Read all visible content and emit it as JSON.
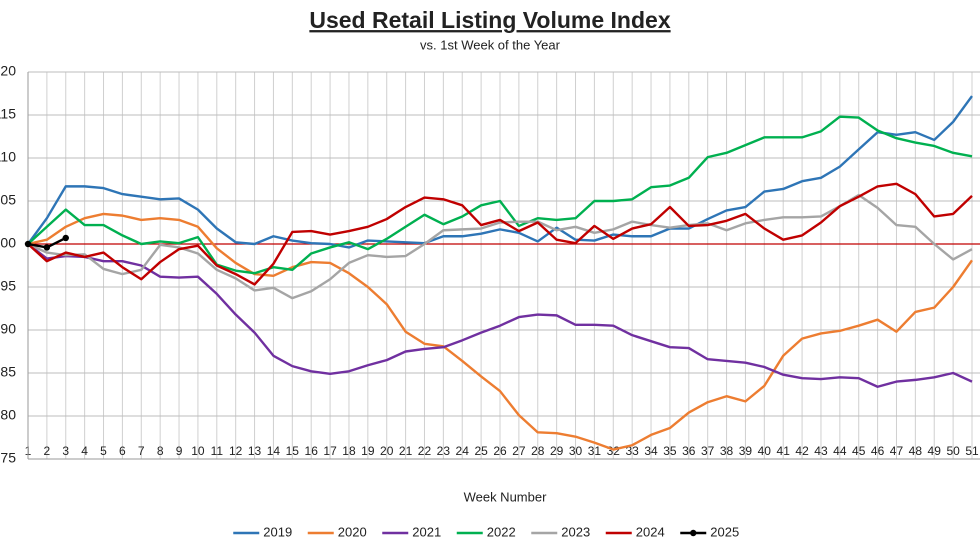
{
  "chart_data": {
    "type": "line",
    "title": "Used Retail Listing Volume Index",
    "subtitle": "vs. 1st Week of the Year",
    "x_label": "Week Number",
    "categories": [
      1,
      2,
      3,
      4,
      5,
      6,
      7,
      8,
      9,
      10,
      11,
      12,
      13,
      14,
      15,
      16,
      17,
      18,
      19,
      20,
      21,
      22,
      23,
      24,
      25,
      26,
      27,
      28,
      29,
      30,
      31,
      32,
      33,
      34,
      35,
      36,
      37,
      38,
      39,
      40,
      41,
      42,
      43,
      44,
      45,
      46,
      47,
      48,
      49,
      50,
      51
    ],
    "ylim": [
      75,
      120
    ],
    "yticks": [
      75,
      80,
      85,
      90,
      95,
      100,
      105,
      110,
      115,
      120
    ],
    "grid": true,
    "reference_line": {
      "value": 100,
      "color": "#c00000"
    },
    "legend": "bottom",
    "series": [
      {
        "name": "2019",
        "color": "#2e75b6",
        "values": [
          100,
          103,
          106.7,
          106.7,
          106.5,
          105.8,
          105.5,
          105.2,
          105.3,
          104,
          101.8,
          100.2,
          100,
          100.9,
          100.4,
          100.1,
          100,
          99.6,
          100.4,
          100.3,
          100.2,
          100.1,
          100.9,
          100.9,
          101.2,
          101.7,
          101.3,
          100.3,
          101.9,
          100.5,
          100.4,
          101.1,
          100.9,
          100.9,
          101.8,
          101.8,
          102.9,
          103.9,
          104.3,
          106.1,
          106.4,
          107.3,
          107.7,
          109,
          111,
          113,
          112.7,
          113,
          112.1,
          114.2,
          117.2
        ]
      },
      {
        "name": "2020",
        "color": "#ed7d31",
        "values": [
          100,
          100.5,
          102,
          103,
          103.5,
          103.3,
          102.8,
          103,
          102.8,
          102,
          99.5,
          97.8,
          96.5,
          96.3,
          97.3,
          97.9,
          97.8,
          96.6,
          95,
          93,
          89.8,
          88.4,
          88.1,
          86.4,
          84.6,
          82.9,
          80.1,
          78.1,
          78,
          77.6,
          76.9,
          76.1,
          76.6,
          77.8,
          78.6,
          80.4,
          81.6,
          82.3,
          81.7,
          83.5,
          87,
          89,
          89.6,
          89.9,
          90.5,
          91.2,
          89.8,
          92.1,
          92.6,
          95,
          98.1
        ]
      },
      {
        "name": "2021",
        "color": "#7030a0",
        "values": [
          100,
          98.3,
          98.6,
          98.5,
          98,
          98,
          97.5,
          96.2,
          96.1,
          96.2,
          94.2,
          91.8,
          89.7,
          87,
          85.8,
          85.2,
          84.9,
          85.2,
          85.9,
          86.5,
          87.5,
          87.8,
          88,
          88.8,
          89.7,
          90.5,
          91.5,
          91.8,
          91.7,
          90.6,
          90.6,
          90.5,
          89.4,
          88.7,
          88,
          87.9,
          86.6,
          86.4,
          86.2,
          85.7,
          84.8,
          84.4,
          84.3,
          84.5,
          84.4,
          83.4,
          84,
          84.2,
          84.5,
          85,
          84
        ]
      },
      {
        "name": "2022",
        "color": "#00b050",
        "values": [
          100,
          102,
          104,
          102.2,
          102.2,
          101,
          100,
          100.3,
          100.1,
          100.8,
          97.6,
          96.9,
          96.6,
          97.3,
          97,
          98.9,
          99.6,
          100.2,
          99.4,
          100.6,
          102,
          103.4,
          102.3,
          103.2,
          104.5,
          105,
          102.1,
          103,
          102.8,
          103,
          105,
          105,
          105.2,
          106.6,
          106.8,
          107.7,
          110.1,
          110.6,
          111.5,
          112.4,
          112.4,
          112.4,
          113.1,
          114.8,
          114.7,
          113.2,
          112.3,
          111.8,
          111.4,
          110.6,
          110.2
        ]
      },
      {
        "name": "2023",
        "color": "#a5a5a5",
        "values": [
          100,
          99,
          98.7,
          98.8,
          97.1,
          96.5,
          97,
          99.9,
          99.6,
          98.9,
          97,
          96,
          94.6,
          94.9,
          93.7,
          94.5,
          95.9,
          97.8,
          98.7,
          98.5,
          98.6,
          100,
          101.6,
          101.7,
          101.8,
          102.5,
          102.6,
          102.6,
          101.6,
          102,
          101.3,
          101.7,
          102.6,
          102.2,
          101.9,
          102.2,
          102.4,
          101.6,
          102.4,
          102.8,
          103.1,
          103.1,
          103.2,
          104.4,
          105.7,
          104.2,
          102.2,
          102,
          100,
          98.2,
          99.4
        ]
      },
      {
        "name": "2024",
        "color": "#c00000",
        "values": [
          100,
          98,
          99,
          98.5,
          99,
          97.3,
          95.9,
          97.9,
          99.4,
          99.8,
          97.5,
          96.5,
          95.3,
          97.7,
          101.4,
          101.5,
          101.1,
          101.5,
          102,
          102.9,
          104.3,
          105.4,
          105.2,
          104.5,
          102.2,
          102.8,
          101.5,
          102.5,
          100.5,
          100.1,
          102.1,
          100.6,
          101.8,
          102.3,
          104.3,
          102.1,
          102.2,
          102.7,
          103.5,
          101.8,
          100.5,
          101,
          102.5,
          104.4,
          105.5,
          106.7,
          107,
          105.8,
          103.2,
          103.5,
          105.6
        ]
      },
      {
        "name": "2025",
        "color": "#000000",
        "marker": true,
        "values": [
          100,
          99.6,
          100.7,
          null,
          null,
          null,
          null,
          null,
          null,
          null,
          null,
          null,
          null,
          null,
          null,
          null,
          null,
          null,
          null,
          null,
          null,
          null,
          null,
          null,
          null,
          null,
          null,
          null,
          null,
          null,
          null,
          null,
          null,
          null,
          null,
          null,
          null,
          null,
          null,
          null,
          null,
          null,
          null,
          null,
          null,
          null,
          null,
          null,
          null,
          null,
          null
        ]
      }
    ]
  }
}
